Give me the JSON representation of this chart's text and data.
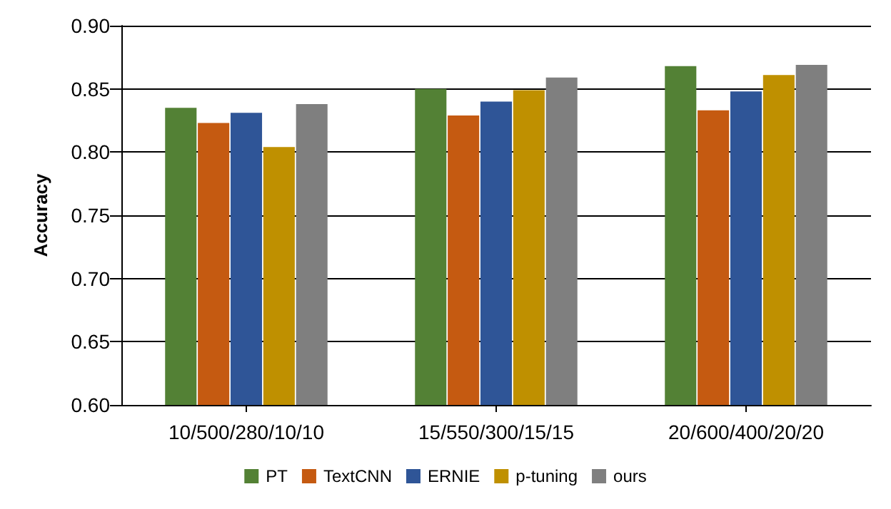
{
  "chart_data": {
    "type": "bar",
    "ylabel": "Accuracy",
    "categories": [
      "10/500/280/10/10",
      "15/550/300/15/15",
      "20/600/400/20/20"
    ],
    "series": [
      {
        "name": "PT",
        "color": "#538135",
        "values": [
          0.835,
          0.85,
          0.868
        ]
      },
      {
        "name": "TextCNN",
        "color": "#c55a11",
        "values": [
          0.823,
          0.829,
          0.833
        ]
      },
      {
        "name": "ERNIE",
        "color": "#2f5597",
        "values": [
          0.831,
          0.84,
          0.848
        ]
      },
      {
        "name": "p-tuning",
        "color": "#bf9000",
        "values": [
          0.804,
          0.849,
          0.861
        ]
      },
      {
        "name": "ours",
        "color": "#7f7f7f",
        "values": [
          0.838,
          0.859,
          0.869
        ]
      }
    ],
    "ylim": [
      0.6,
      0.9
    ],
    "yticks": [
      {
        "value": 0.6,
        "label": "0.60"
      },
      0.65,
      {
        "value": 0.7,
        "label": "0.70"
      },
      0.75,
      {
        "value": 0.8,
        "label": "0.80"
      },
      0.85,
      {
        "value": 0.9,
        "label": "0.90"
      }
    ],
    "grid": "y",
    "legend": "bottom"
  }
}
